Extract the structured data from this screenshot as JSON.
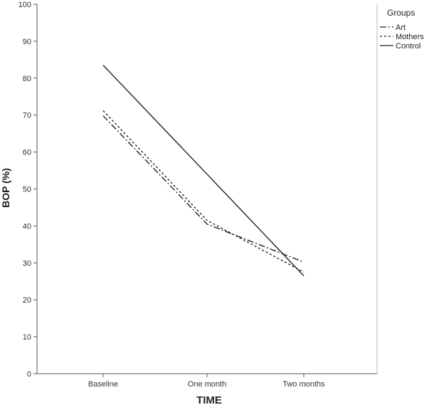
{
  "chart_data": {
    "type": "line",
    "categories": [
      "Baseline",
      "One month",
      "Two months"
    ],
    "series": [
      {
        "name": "Art",
        "values": [
          69.8,
          40.5,
          30.2
        ],
        "style": "dash-dot"
      },
      {
        "name": "Mothers",
        "values": [
          71.2,
          41.5,
          27.5
        ],
        "style": "dotted"
      },
      {
        "name": "Control",
        "values": [
          83.5,
          54.0,
          26.5
        ],
        "style": "solid"
      }
    ],
    "title": "",
    "xlabel": "TIME",
    "ylabel": "BOP (%)",
    "ylim": [
      0,
      100
    ],
    "yticks": [
      0,
      10,
      20,
      30,
      40,
      50,
      60,
      70,
      80,
      90,
      100
    ],
    "grid": false,
    "legend": {
      "title": "Groups",
      "placement": "top-right outside"
    },
    "colors": {
      "lines": "#222222",
      "axes": "#555555",
      "background": "#ffffff"
    }
  }
}
